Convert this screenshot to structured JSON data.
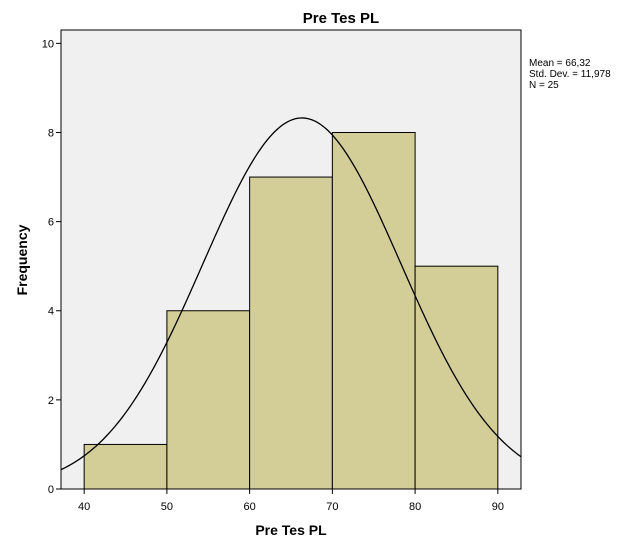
{
  "chart_data": {
    "type": "bar",
    "title": "Pre Tes PL",
    "xlabel": "Pre Tes PL",
    "ylabel": "Frequency",
    "bins": [
      {
        "start": 40,
        "end": 50,
        "count": 1
      },
      {
        "start": 50,
        "end": 60,
        "count": 4
      },
      {
        "start": 60,
        "end": 70,
        "count": 7
      },
      {
        "start": 70,
        "end": 80,
        "count": 8
      },
      {
        "start": 80,
        "end": 90,
        "count": 5
      }
    ],
    "xlim": [
      37.2,
      92.8
    ],
    "ylim": [
      0,
      10.3
    ],
    "x_ticks": [
      40,
      50,
      60,
      70,
      80,
      90
    ],
    "y_ticks": [
      0,
      2,
      4,
      6,
      8,
      10
    ],
    "normal_curve": {
      "mean": 66.32,
      "std": 11.978,
      "n": 25,
      "bin_width": 10
    },
    "stats": {
      "mean": "Mean = 66,32",
      "std": "Std. Dev. = 11,978",
      "n": "N = 25"
    },
    "colors": {
      "plot_background": "#f0f0f0",
      "bar_fill": "#d3ce98",
      "bar_stroke": "#000000",
      "curve": "#000000"
    },
    "grid": false
  }
}
